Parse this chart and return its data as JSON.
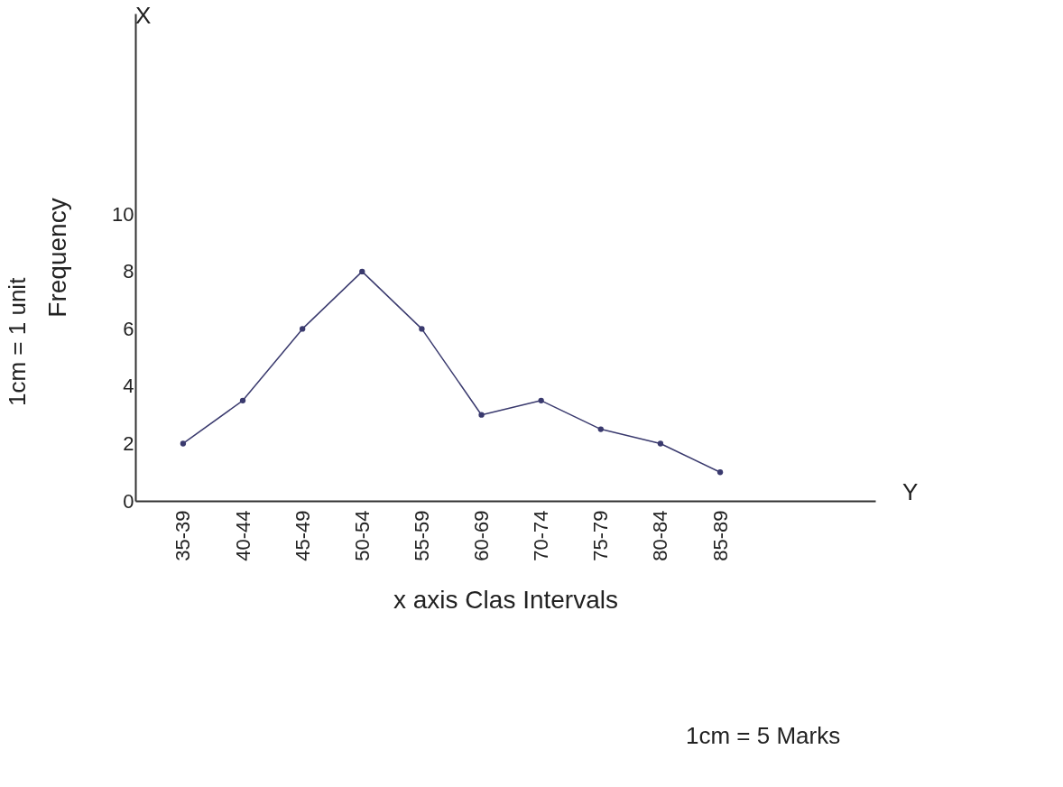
{
  "chart_data": {
    "type": "line",
    "xlabel": "x axis Clas Intervals",
    "ylabel": "Frequency",
    "annotations": [
      "1cm = 1 unit",
      "X",
      "Y",
      "1cm = 5 Marks"
    ],
    "categories": [
      "35-39",
      "40-44",
      "45-49",
      "50-54",
      "55-59",
      "60-69",
      "70-74",
      "75-79",
      "80-84",
      "85-89"
    ],
    "series": [
      {
        "color": "#3a3a6e",
        "values": [
          2,
          3.5,
          6,
          8,
          6,
          3,
          3.5,
          2.5,
          2,
          1
        ]
      }
    ],
    "ylim": [
      0,
      17
    ],
    "yticks": [
      0,
      2,
      4,
      6,
      8,
      10
    ],
    "grid": false,
    "marker": "circle"
  }
}
